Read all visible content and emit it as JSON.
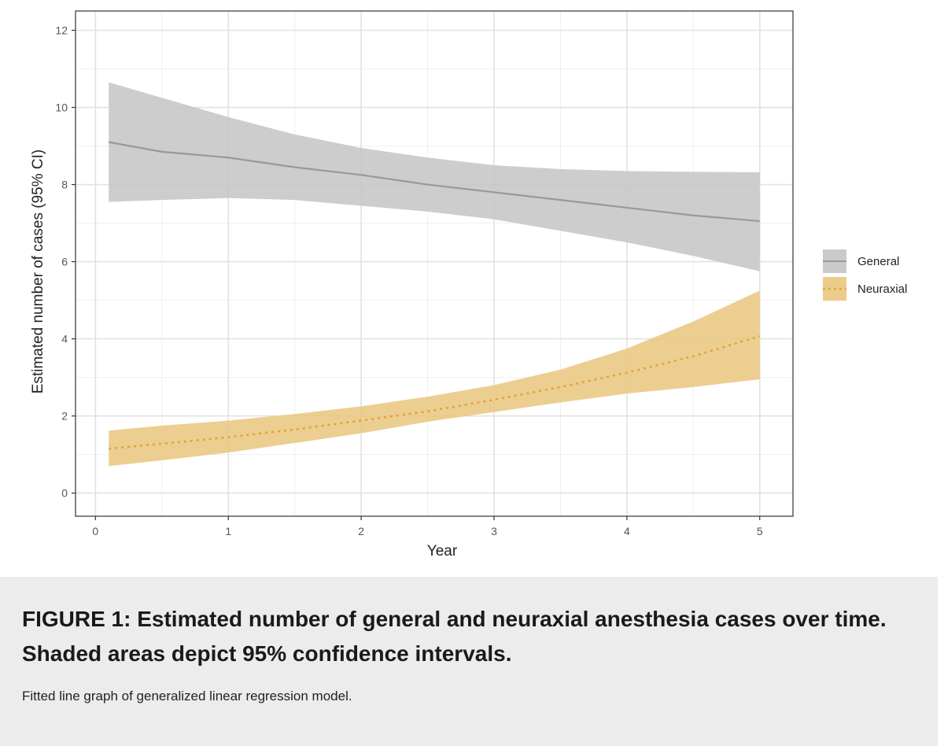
{
  "chart_data": {
    "type": "line",
    "title": "",
    "xlabel": "Year",
    "ylabel": "Estimated number of cases (95% CI)",
    "xlim": [
      -0.15,
      5.25
    ],
    "ylim": [
      -0.6,
      12.5
    ],
    "xticks": [
      0,
      1,
      2,
      3,
      4,
      5
    ],
    "yticks": [
      0,
      2,
      4,
      6,
      8,
      10,
      12
    ],
    "grid": true,
    "legend_position": "right",
    "series": [
      {
        "name": "General",
        "line_style": "solid",
        "line_color": "#999999",
        "band_color": "#c4c4c4",
        "x": [
          0.1,
          0.5,
          1,
          1.5,
          2,
          2.5,
          3,
          3.5,
          4,
          4.5,
          5
        ],
        "y": [
          9.1,
          8.85,
          8.7,
          8.45,
          8.25,
          8.0,
          7.8,
          7.6,
          7.4,
          7.2,
          7.05
        ],
        "lower": [
          7.55,
          7.6,
          7.65,
          7.6,
          7.45,
          7.3,
          7.1,
          6.8,
          6.5,
          6.15,
          5.75
        ],
        "upper": [
          10.65,
          10.25,
          9.75,
          9.3,
          8.95,
          8.7,
          8.5,
          8.4,
          8.35,
          8.33,
          8.32
        ]
      },
      {
        "name": "Neuraxial",
        "line_style": "dotted",
        "line_color": "#e0a537",
        "band_color": "#eac67e",
        "x": [
          0.1,
          0.5,
          1,
          1.5,
          2,
          2.5,
          3,
          3.5,
          4,
          4.5,
          5
        ],
        "y": [
          1.15,
          1.28,
          1.45,
          1.65,
          1.88,
          2.12,
          2.42,
          2.75,
          3.12,
          3.55,
          4.07
        ],
        "lower": [
          0.7,
          0.85,
          1.05,
          1.3,
          1.55,
          1.85,
          2.1,
          2.35,
          2.58,
          2.75,
          2.95
        ],
        "upper": [
          1.62,
          1.75,
          1.88,
          2.05,
          2.25,
          2.5,
          2.8,
          3.2,
          3.75,
          4.45,
          5.25
        ]
      }
    ]
  },
  "caption": {
    "title": "FIGURE 1: Estimated number of general and neuraxial anesthesia cases over time. Shaded areas depict 95% confidence intervals.",
    "text": "Fitted line graph of generalized linear regression model."
  }
}
